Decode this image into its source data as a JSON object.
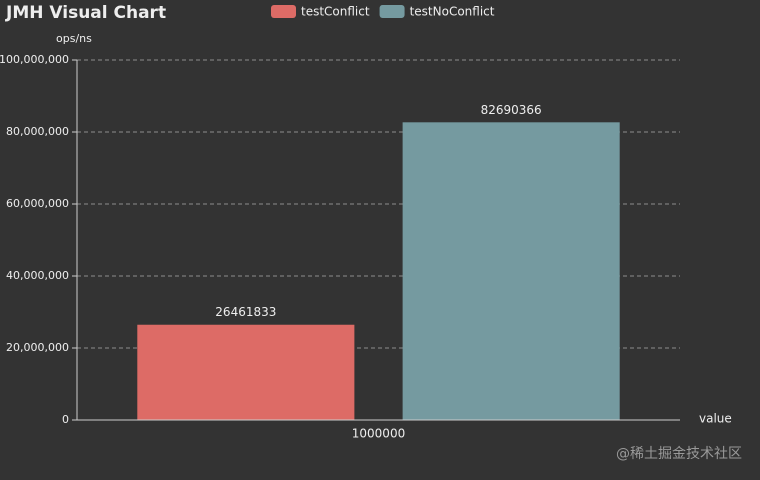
{
  "chart_data": {
    "type": "bar",
    "title": "JMH Visual Chart",
    "y_label": "ops/ns",
    "x_label": "value",
    "categories": [
      "1000000"
    ],
    "series": [
      {
        "name": "testConflict",
        "color": "#dd6b66",
        "values": [
          26461833
        ]
      },
      {
        "name": "testNoConflict",
        "color": "#759aa0",
        "values": [
          82690366
        ]
      }
    ],
    "ylim": [
      0,
      100000000
    ],
    "yticks": [
      0,
      {
        "value": 20000000,
        "label": "20,000,000"
      },
      {
        "value": 40000000,
        "label": "40,000,000"
      },
      {
        "value": 60000000,
        "label": "60,000,000"
      },
      {
        "value": 80000000,
        "label": "80,000,000"
      },
      {
        "value": 100000000,
        "label": "100,000,000"
      }
    ],
    "grid": true,
    "legend": "top",
    "watermark": "@稀土掘金技术社区"
  }
}
